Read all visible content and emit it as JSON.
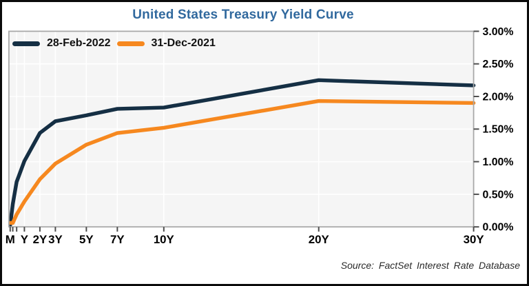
{
  "chart_data": {
    "type": "line",
    "title": "United States Treasury Yield Curve",
    "legend_position": "top-left",
    "grid": true,
    "plot_bg": "#f5f5f5",
    "x_axis": {
      "label": "",
      "scale": "linear-years",
      "min": 0,
      "max": 30,
      "ticks": [
        {
          "t": 0.083,
          "label": "M",
          "grid": false
        },
        {
          "t": 0.25,
          "label": "",
          "grid": false
        },
        {
          "t": 0.5,
          "label": "",
          "grid": true
        },
        {
          "t": 1,
          "label": "Y",
          "grid": true
        },
        {
          "t": 2,
          "label": "2Y",
          "grid": true
        },
        {
          "t": 3,
          "label": "3Y",
          "grid": true
        },
        {
          "t": 5,
          "label": "5Y",
          "grid": true
        },
        {
          "t": 7,
          "label": "7Y",
          "grid": true
        },
        {
          "t": 10,
          "label": "10Y",
          "grid": true
        },
        {
          "t": 20,
          "label": "20Y",
          "grid": true
        },
        {
          "t": 30,
          "label": "30Y",
          "grid": false
        }
      ]
    },
    "y_axis": {
      "side": "right",
      "min": 0,
      "max": 3,
      "tick_step": 0.5,
      "tick_labels": [
        "0.00%",
        "0.50%",
        "1.00%",
        "1.50%",
        "2.00%",
        "2.50%",
        "3.00%"
      ]
    },
    "series": [
      {
        "name": "28-Feb-2022",
        "color": "#152f44",
        "points": [
          [
            0.083,
            0.03
          ],
          [
            0.25,
            0.35
          ],
          [
            0.5,
            0.69
          ],
          [
            1,
            1.01
          ],
          [
            2,
            1.44
          ],
          [
            3,
            1.62
          ],
          [
            5,
            1.71
          ],
          [
            7,
            1.81
          ],
          [
            10,
            1.83
          ],
          [
            20,
            2.25
          ],
          [
            30,
            2.17
          ]
        ]
      },
      {
        "name": "31-Dec-2021",
        "color": "#f6881f",
        "points": [
          [
            0.083,
            0.06
          ],
          [
            0.25,
            0.06
          ],
          [
            0.5,
            0.19
          ],
          [
            1,
            0.39
          ],
          [
            2,
            0.73
          ],
          [
            3,
            0.97
          ],
          [
            5,
            1.26
          ],
          [
            7,
            1.44
          ],
          [
            10,
            1.52
          ],
          [
            20,
            1.93
          ],
          [
            30,
            1.9
          ]
        ]
      }
    ]
  },
  "footer": {
    "source": "Source: FactSet Interest Rate Database"
  },
  "colors": {
    "title": "#31699e",
    "frame": "#a8a8a8",
    "tick": "#4d4d4d",
    "gridline": "#ffffff",
    "axis_text": "#000000",
    "figure_border": "#0b0b0b",
    "background": "#ffffff"
  }
}
